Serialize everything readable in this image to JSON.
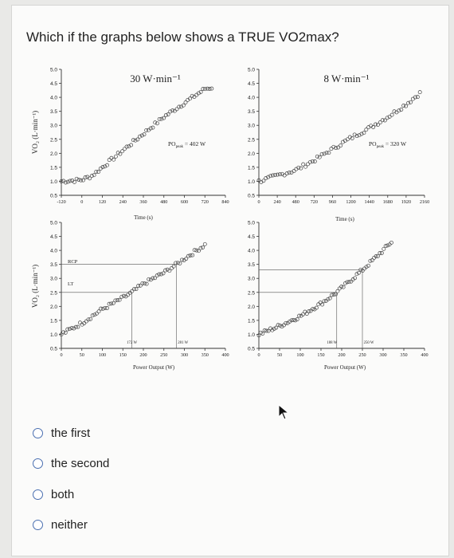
{
  "question": "Which if the graphs below shows a TRUE VO2max?",
  "figure": {
    "title_left": "30 W·min⁻¹",
    "title_right": "8 W·min⁻¹",
    "ylabel": "VO₂ (L·min⁻¹)",
    "time_label": "Time (s)",
    "power_label": "Power Output (W)",
    "po_left": "PO",
    "po_left_sub": "peak",
    "po_left_val": "= 402 W",
    "po_right": "PO",
    "po_right_sub": "peak",
    "po_right_val": "= 320 W",
    "rcp_label": "RCP",
    "lt_label": "LT",
    "left_lt_w": "172 W",
    "left_rcp_w": "281 W",
    "right_lt_w": "188 W",
    "right_rcp_w": "250 W",
    "y_ticks": [
      "5.0",
      "4.5",
      "4.0",
      "3.5",
      "3.0",
      "2.5",
      "2.0",
      "1.5",
      "1.0",
      "0.5"
    ],
    "left_time_ticks": [
      "-120",
      "0",
      "120",
      "240",
      "360",
      "480",
      "600",
      "720",
      "840"
    ],
    "right_time_ticks": [
      "0",
      "240",
      "480",
      "720",
      "960",
      "1200",
      "1440",
      "1680",
      "1920",
      "2160"
    ],
    "power_ticks": [
      "0",
      "50",
      "100",
      "150",
      "200",
      "250",
      "300",
      "350",
      "400"
    ]
  },
  "chart_data": [
    {
      "type": "scatter",
      "title": "30 W·min⁻¹",
      "xlabel": "Time (s)",
      "ylabel": "VO₂ (L·min⁻¹)",
      "xlim": [
        -120,
        840
      ],
      "ylim": [
        0.5,
        5.0
      ],
      "x": [
        -120,
        0,
        60,
        120,
        240,
        360,
        480,
        600,
        720,
        760
      ],
      "y": [
        1.0,
        1.05,
        1.2,
        1.5,
        2.1,
        2.7,
        3.3,
        3.8,
        4.3,
        4.35
      ]
    },
    {
      "type": "scatter",
      "title": "8 W·min⁻¹",
      "xlabel": "Time (s)",
      "ylabel": "VO₂ (L·min⁻¹)",
      "xlim": [
        0,
        2160
      ],
      "ylim": [
        0.5,
        5.0
      ],
      "x": [
        0,
        240,
        480,
        720,
        960,
        1200,
        1440,
        1680,
        1920,
        2100
      ],
      "y": [
        1.0,
        1.2,
        1.4,
        1.75,
        2.15,
        2.55,
        2.9,
        3.3,
        3.75,
        4.15
      ]
    },
    {
      "type": "scatter",
      "xlabel": "Power Output (W)",
      "ylabel": "VO₂ (L·min⁻¹)",
      "xlim": [
        0,
        400
      ],
      "ylim": [
        0.5,
        5.0
      ],
      "x": [
        0,
        50,
        100,
        150,
        172,
        200,
        250,
        281,
        300,
        350
      ],
      "y": [
        1.0,
        1.4,
        1.9,
        2.3,
        2.5,
        2.8,
        3.2,
        3.5,
        3.7,
        4.2
      ]
    },
    {
      "type": "scatter",
      "xlabel": "Power Output (W)",
      "ylabel": "VO₂ (L·min⁻¹)",
      "xlim": [
        0,
        400
      ],
      "ylim": [
        0.5,
        5.0
      ],
      "x": [
        0,
        50,
        100,
        150,
        188,
        200,
        250,
        300,
        320
      ],
      "y": [
        1.0,
        1.3,
        1.65,
        2.1,
        2.5,
        2.65,
        3.3,
        4.0,
        4.3
      ]
    }
  ],
  "options": [
    {
      "label": "the first"
    },
    {
      "label": "the second"
    },
    {
      "label": "both"
    },
    {
      "label": "neither"
    }
  ]
}
